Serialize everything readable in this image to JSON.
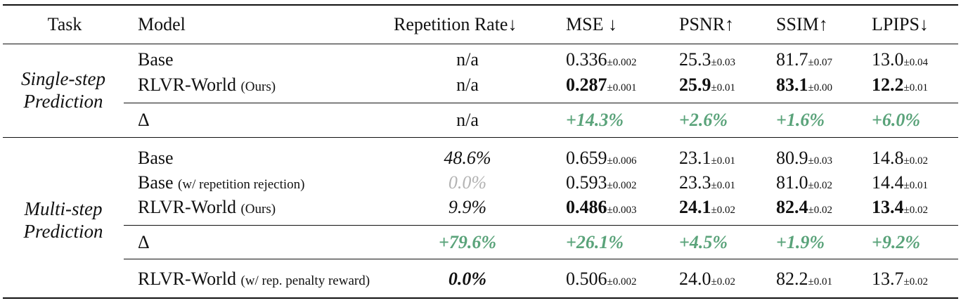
{
  "headers": {
    "task": "Task",
    "model": "Model",
    "rep": "Repetition Rate↓",
    "mse": "MSE ↓",
    "psnr": "PSNR↑",
    "ssim": "SSIM↑",
    "lpips": "LPIPS↓"
  },
  "single": {
    "task_line1": "Single-step",
    "task_line2": "Prediction",
    "rows": [
      {
        "model": "Base",
        "model_note": "",
        "rep": "n/a",
        "mse": "0.336",
        "mse_sd": "±0.002",
        "psnr": "25.3",
        "psnr_sd": "±0.03",
        "ssim": "81.7",
        "ssim_sd": "±0.07",
        "lpips": "13.0",
        "lpips_sd": "±0.04"
      },
      {
        "model": "RLVR-World",
        "model_note": "(Ours)",
        "rep": "n/a",
        "mse": "0.287",
        "mse_sd": "±0.001",
        "psnr": "25.9",
        "psnr_sd": "±0.01",
        "ssim": "83.1",
        "ssim_sd": "±0.00",
        "lpips": "12.2",
        "lpips_sd": "±0.01"
      }
    ],
    "delta": {
      "label": "Δ",
      "rep": "n/a",
      "mse": "+14.3%",
      "psnr": "+2.6%",
      "ssim": "+1.6%",
      "lpips": "+6.0%"
    }
  },
  "multi": {
    "task_line1": "Multi-step",
    "task_line2": "Prediction",
    "rows": [
      {
        "model": "Base",
        "model_note": "",
        "rep": "48.6%",
        "mse": "0.659",
        "mse_sd": "±0.006",
        "psnr": "23.1",
        "psnr_sd": "±0.01",
        "ssim": "80.9",
        "ssim_sd": "±0.03",
        "lpips": "14.8",
        "lpips_sd": "±0.02"
      },
      {
        "model": "Base",
        "model_note": "(w/ repetition rejection)",
        "rep": "0.0%",
        "mse": "0.593",
        "mse_sd": "±0.002",
        "psnr": "23.3",
        "psnr_sd": "±0.01",
        "ssim": "81.0",
        "ssim_sd": "±0.02",
        "lpips": "14.4",
        "lpips_sd": "±0.01"
      },
      {
        "model": "RLVR-World",
        "model_note": "(Ours)",
        "rep": "9.9%",
        "mse": "0.486",
        "mse_sd": "±0.003",
        "psnr": "24.1",
        "psnr_sd": "±0.02",
        "ssim": "82.4",
        "ssim_sd": "±0.02",
        "lpips": "13.4",
        "lpips_sd": "±0.02"
      }
    ],
    "delta": {
      "label": "Δ",
      "rep": "+79.6%",
      "mse": "+26.1%",
      "psnr": "+4.5%",
      "ssim": "+1.9%",
      "lpips": "+9.2%"
    }
  },
  "extra": {
    "model": "RLVR-World",
    "model_note": "(w/ rep. penalty reward)",
    "rep": "0.0%",
    "mse": "0.506",
    "mse_sd": "±0.002",
    "psnr": "24.0",
    "psnr_sd": "±0.02",
    "ssim": "82.2",
    "ssim_sd": "±0.01",
    "lpips": "13.7",
    "lpips_sd": "±0.02"
  }
}
